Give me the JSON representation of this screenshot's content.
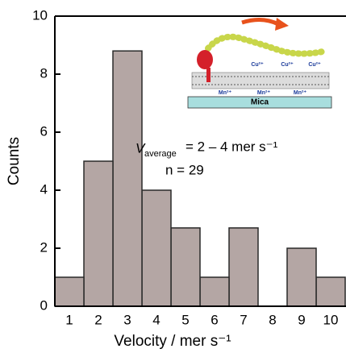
{
  "chart_data": {
    "type": "bar",
    "x_label": "Velocity / mer s⁻¹",
    "y_label": "Counts",
    "categories": [
      "1",
      "2",
      "3",
      "4",
      "5",
      "6",
      "7",
      "8",
      "9",
      "10"
    ],
    "values": [
      1,
      5,
      8.8,
      4,
      2.7,
      1,
      2.7,
      0,
      2,
      1
    ],
    "color": "#b4a6a4",
    "ylim": [
      0,
      10
    ],
    "yticks": [
      0,
      2,
      4,
      6,
      8,
      10
    ],
    "annotation_symbol": "V",
    "annotation_subscript": "average",
    "annotation_rest": "= 2 – 4 mer s⁻¹",
    "annotation_n": "n = 29"
  },
  "inset": {
    "substrate": "Mica",
    "ion_labels": [
      "Cu²⁺",
      "Cu²⁺",
      "Cu²⁺",
      "Mn²⁺",
      "Mn²⁺",
      "Mn²⁺"
    ]
  }
}
